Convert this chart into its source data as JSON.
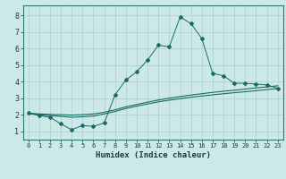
{
  "xlabel": "Humidex (Indice chaleur)",
  "bg_color": "#cce9e7",
  "line_color": "#1a6b65",
  "grid_color": "#aacfcc",
  "xlim": [
    -0.5,
    23.5
  ],
  "ylim": [
    0.5,
    8.6
  ],
  "xticks": [
    0,
    1,
    2,
    3,
    4,
    5,
    6,
    7,
    8,
    9,
    10,
    11,
    12,
    13,
    14,
    15,
    16,
    17,
    18,
    19,
    20,
    21,
    22,
    23
  ],
  "yticks": [
    1,
    2,
    3,
    4,
    5,
    6,
    7,
    8
  ],
  "line1_x": [
    0,
    1,
    2,
    3,
    4,
    5,
    6,
    7,
    8,
    9,
    10,
    11,
    12,
    13,
    14,
    15,
    16,
    17,
    18,
    19,
    20,
    21,
    22,
    23
  ],
  "line1_y": [
    2.1,
    1.95,
    1.85,
    1.45,
    1.1,
    1.35,
    1.3,
    1.5,
    3.2,
    4.1,
    4.6,
    5.3,
    6.2,
    6.1,
    7.9,
    7.5,
    6.6,
    4.5,
    4.35,
    3.9,
    3.9,
    3.85,
    3.8,
    3.6
  ],
  "line2_x": [
    0,
    1,
    2,
    3,
    4,
    5,
    6,
    7,
    8,
    9,
    10,
    11,
    12,
    13,
    14,
    15,
    16,
    17,
    18,
    19,
    20,
    21,
    22,
    23
  ],
  "line2_y": [
    2.1,
    2.0,
    1.95,
    1.9,
    1.85,
    1.88,
    1.92,
    2.05,
    2.2,
    2.38,
    2.52,
    2.65,
    2.78,
    2.88,
    2.97,
    3.06,
    3.13,
    3.2,
    3.27,
    3.33,
    3.39,
    3.45,
    3.52,
    3.58
  ],
  "line3_x": [
    0,
    1,
    2,
    3,
    4,
    5,
    6,
    7,
    8,
    9,
    10,
    11,
    12,
    13,
    14,
    15,
    16,
    17,
    18,
    19,
    20,
    21,
    22,
    23
  ],
  "line3_y": [
    2.1,
    2.05,
    2.02,
    2.0,
    1.98,
    2.0,
    2.05,
    2.15,
    2.3,
    2.48,
    2.62,
    2.76,
    2.89,
    3.0,
    3.1,
    3.19,
    3.27,
    3.35,
    3.42,
    3.48,
    3.55,
    3.62,
    3.68,
    3.75
  ]
}
